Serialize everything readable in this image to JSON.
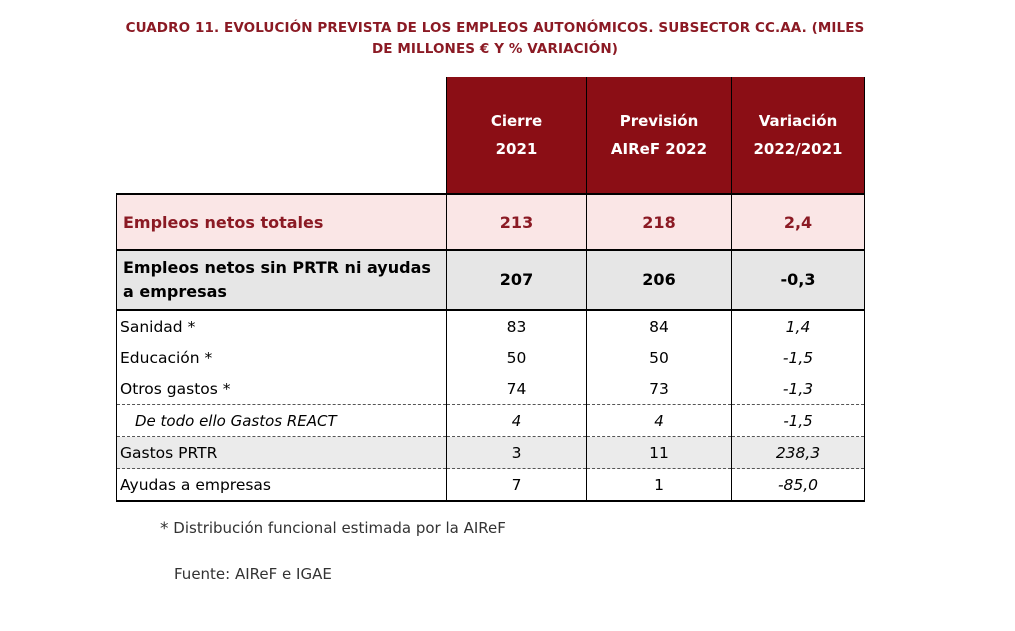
{
  "title": {
    "line1": "CUADRO 11.  EVOLUCIÓN PREVISTA DE LOS EMPLEOS AUTONÓMICOS. SUBSECTOR CC.AA. (MILES",
    "line2": "DE MILLONES € Y % VARIACIÓN)"
  },
  "table": {
    "headers": [
      {
        "line1": "Cierre",
        "line2": "2021"
      },
      {
        "line1": "Previsión",
        "line2": "AIReF 2022"
      },
      {
        "line1": "Variación",
        "line2": "2022/2021"
      }
    ],
    "rows": [
      {
        "label": "Empleos netos totales",
        "v2021": "213",
        "v2022": "218",
        "var": "2,4"
      },
      {
        "label_line1": "Empleos netos sin PRTR ni ayudas",
        "label_line2": "a empresas",
        "v2021": "207",
        "v2022": "206",
        "var": "-0,3"
      },
      {
        "label": "Sanidad *",
        "v2021": "83",
        "v2022": "84",
        "var": "1,4"
      },
      {
        "label": "Educación *",
        "v2021": "50",
        "v2022": "50",
        "var": "-1,5"
      },
      {
        "label": "Otros gastos *",
        "v2021": "74",
        "v2022": "73",
        "var": "-1,3"
      },
      {
        "label": "De todo ello Gastos REACT",
        "v2021": "4",
        "v2022": "4",
        "var": "-1,5"
      },
      {
        "label": "Gastos PRTR",
        "v2021": "3",
        "v2022": "11",
        "var": "238,3"
      },
      {
        "label": "Ayudas a empresas",
        "v2021": "7",
        "v2022": "1",
        "var": "-85,0"
      }
    ]
  },
  "footnote": {
    "star": "*",
    "text": "Distribución funcional estimada por la AIReF"
  },
  "source": "Fuente: AIReF e IGAE",
  "colors": {
    "header_bg": "#8b0e15",
    "title": "#8b1a24",
    "total_bg": "#fae6e6",
    "grey_bg": "#e6e6e6"
  }
}
